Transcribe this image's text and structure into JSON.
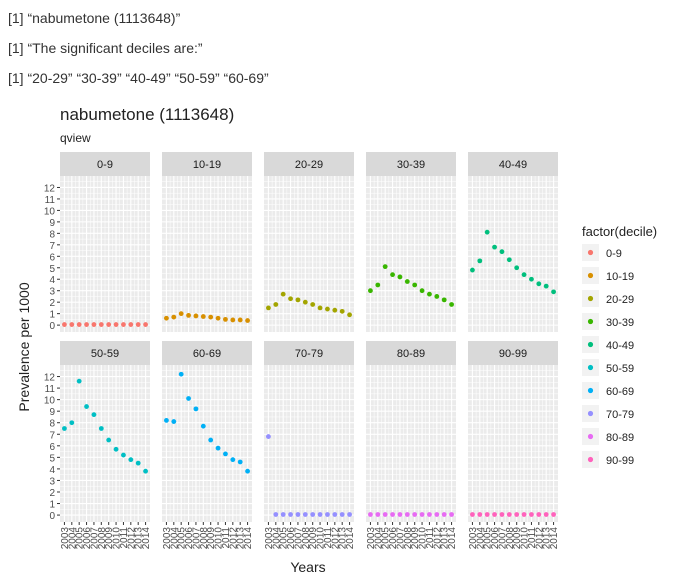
{
  "console": {
    "lines": [
      "[1] “nabumetone (1113648)”",
      "[1] “The significant deciles are:”",
      "[1] “20-29” “30-39” “40-49” “50-59” “60-69”"
    ]
  },
  "colors": {
    "panel_bg": "#ebebeb",
    "strip_bg": "#d9d9d9",
    "grid": "#ffffff"
  },
  "chart_data": {
    "type": "scatter",
    "title": "nabumetone (1113648)",
    "subtitle": "qview",
    "xlabel": "Years",
    "ylabel": "Prevalence per 1000",
    "legend_title": "factor(decile)",
    "legend_position": "right",
    "grid": true,
    "x": [
      2003,
      2004,
      2005,
      2006,
      2007,
      2008,
      2009,
      2010,
      2011,
      2012,
      2013,
      2014
    ],
    "x_tick_labels": [
      "2003",
      "2004",
      "2005",
      "2006",
      "2007",
      "2008",
      "2009",
      "2010",
      "2011",
      "2012",
      "2013",
      "2014"
    ],
    "ylim": [
      -0.6,
      13
    ],
    "y_ticks": [
      0,
      1,
      2,
      3,
      4,
      5,
      6,
      7,
      8,
      9,
      10,
      11,
      12
    ],
    "facet_rows": 2,
    "facet_cols": 5,
    "series": [
      {
        "name": "0-9",
        "color": "#F8766D",
        "values": [
          0.05,
          0.05,
          0.05,
          0.05,
          0.05,
          0.05,
          0.05,
          0.05,
          0.05,
          0.05,
          0.05,
          0.05
        ]
      },
      {
        "name": "10-19",
        "color": "#D89000",
        "values": [
          0.6,
          0.7,
          1.0,
          0.85,
          0.8,
          0.75,
          0.7,
          0.6,
          0.5,
          0.45,
          0.45,
          0.4
        ]
      },
      {
        "name": "20-29",
        "color": "#A3A500",
        "values": [
          1.5,
          1.8,
          2.7,
          2.3,
          2.2,
          2.0,
          1.8,
          1.5,
          1.4,
          1.3,
          1.2,
          0.9
        ]
      },
      {
        "name": "30-39",
        "color": "#39B600",
        "values": [
          3.0,
          3.5,
          5.1,
          4.4,
          4.2,
          3.8,
          3.5,
          3.0,
          2.7,
          2.5,
          2.2,
          1.8
        ]
      },
      {
        "name": "40-49",
        "color": "#00BF7D",
        "values": [
          4.8,
          5.6,
          8.1,
          6.8,
          6.4,
          5.7,
          5.0,
          4.4,
          4.0,
          3.6,
          3.4,
          2.9
        ]
      },
      {
        "name": "50-59",
        "color": "#00BFC4",
        "values": [
          7.5,
          8.0,
          11.6,
          9.4,
          8.7,
          7.5,
          6.5,
          5.7,
          5.2,
          4.8,
          4.5,
          3.8
        ]
      },
      {
        "name": "60-69",
        "color": "#00B0F6",
        "values": [
          8.2,
          8.1,
          12.2,
          10.1,
          9.2,
          7.7,
          6.5,
          5.8,
          5.3,
          4.8,
          4.6,
          3.8
        ]
      },
      {
        "name": "70-79",
        "color": "#9590FF",
        "values": [
          6.8,
          0.05,
          0.05,
          0.05,
          0.05,
          0.05,
          0.05,
          0.05,
          0.05,
          0.05,
          0.05,
          0.05
        ]
      },
      {
        "name": "80-89",
        "color": "#E76BF3",
        "values": [
          0.05,
          0.05,
          0.05,
          0.05,
          0.05,
          0.05,
          0.05,
          0.05,
          0.05,
          0.05,
          0.05,
          0.05
        ]
      },
      {
        "name": "90-99",
        "color": "#FF62BC",
        "values": [
          0.05,
          0.05,
          0.05,
          0.05,
          0.05,
          0.05,
          0.05,
          0.05,
          0.05,
          0.05,
          0.05,
          0.05
        ]
      }
    ]
  }
}
